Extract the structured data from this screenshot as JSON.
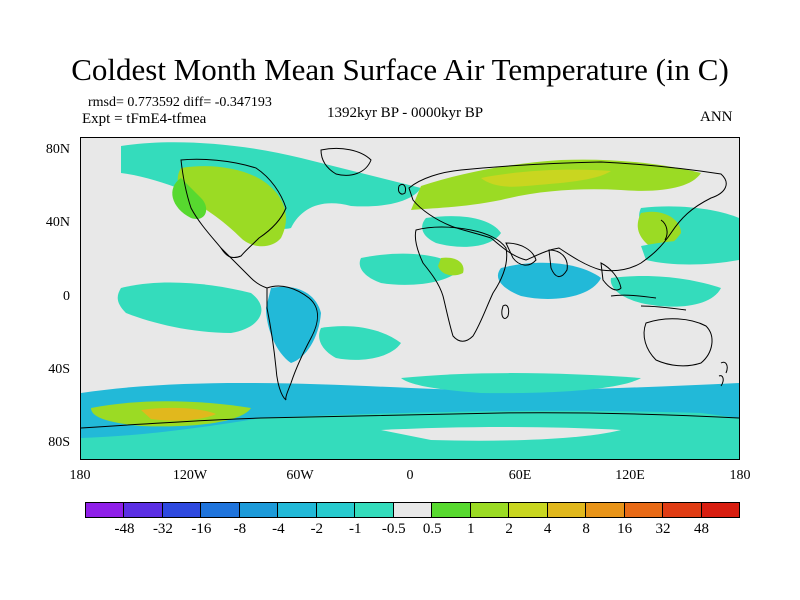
{
  "title": "Coldest Month Mean Surface Air Temperature (in C)",
  "stats": "rmsd= 0.773592 diff= -0.347193",
  "expt": "Expt = tFmE4-tfmea",
  "period": "1392kyr BP - 0000kyr BP",
  "season": "ANN",
  "lat_labels": [
    "80N",
    "40N",
    "0",
    "40S",
    "80S"
  ],
  "lon_labels": [
    "180",
    "120W",
    "60W",
    "0",
    "60E",
    "120E",
    "180"
  ],
  "colorbar": {
    "labels": [
      "-48",
      "-32",
      "-16",
      "-8",
      "-4",
      "-2",
      "-1",
      "-0.5",
      "0.5",
      "1",
      "2",
      "4",
      "8",
      "16",
      "32",
      "48"
    ],
    "colors": [
      "#8f1fe8",
      "#5b2fe3",
      "#2e49df",
      "#1f74dc",
      "#1c9ad9",
      "#22b9d8",
      "#28cbcf",
      "#34dcbc",
      "#e8e8e8",
      "#57d92f",
      "#9bdb24",
      "#c9d620",
      "#e1b81d",
      "#e89419",
      "#e86a16",
      "#e03c14",
      "#d81e10"
    ]
  },
  "map_colors": {
    "neutral": "#e8e8e8",
    "cool_light": "#34dcbc",
    "cool": "#22b9d8",
    "cool_dark": "#1c9ad9",
    "warm_light": "#57d92f",
    "warm": "#9bdb24",
    "warm_dark": "#c9d620",
    "warm_orange": "#e1b81d"
  }
}
